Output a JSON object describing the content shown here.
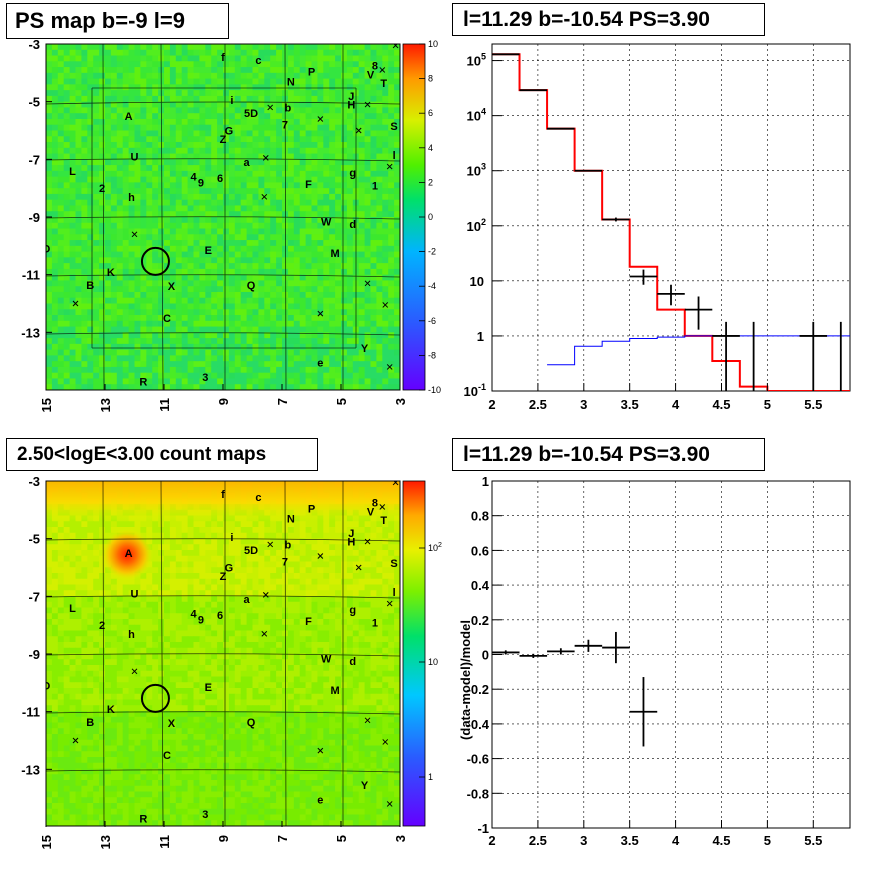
{
  "panels": {
    "ps_map": {
      "title": "PS map b=-9 l=9",
      "y_ticks": [
        "-3",
        "-5",
        "-7",
        "-9",
        "-11",
        "-13"
      ],
      "x_ticks": [
        "15",
        "13",
        "11",
        "9",
        "7",
        "5",
        "3"
      ],
      "colorbar_ticks": [
        "10",
        "8",
        "6",
        "4",
        "2",
        "0",
        "-2",
        "-4",
        "-6",
        "-8",
        "-10"
      ],
      "colorbar_range": [
        -10,
        10
      ]
    },
    "count_map": {
      "title": "2.50<logE<3.00 count maps",
      "y_ticks": [
        "-3",
        "-5",
        "-7",
        "-9",
        "-11",
        "-13"
      ],
      "x_ticks": [
        "15",
        "13",
        "11",
        "9",
        "7",
        "5",
        "3"
      ],
      "colorbar_ticks": [
        "10^2",
        "10",
        "1"
      ],
      "colorbar_scale": "log"
    },
    "spectrum": {
      "title": "l=11.29 b=-10.54 PS=3.90",
      "x_ticks": [
        "2",
        "2.5",
        "3",
        "3.5",
        "4",
        "4.5",
        "5",
        "5.5"
      ],
      "y_ticks": [
        {
          "base": "10",
          "exp": "5",
          "v": 5
        },
        {
          "base": "10",
          "exp": "4",
          "v": 4
        },
        {
          "base": "10",
          "exp": "3",
          "v": 3
        },
        {
          "base": "10",
          "exp": "2",
          "v": 2
        },
        {
          "base": "10",
          "exp": "",
          "v": 1
        },
        {
          "base": "1",
          "exp": "",
          "v": 0
        },
        {
          "base": "10",
          "exp": "-1",
          "v": -1
        }
      ]
    },
    "residual": {
      "title": "l=11.29 b=-10.54 PS=3.90",
      "ylabel": "(data-model)/model",
      "x_ticks": [
        "2",
        "2.5",
        "3",
        "3.5",
        "4",
        "4.5",
        "5",
        "5.5"
      ],
      "y_ticks": [
        "1",
        "0.8",
        "0.6",
        "0.4",
        "0.2",
        "0",
        "-0.2",
        "-0.4",
        "-0.6",
        "-0.8",
        "-1"
      ]
    }
  },
  "map_labels": [
    {
      "t": "f",
      "l": 9.0,
      "b": -3.45
    },
    {
      "t": "c",
      "l": 7.8,
      "b": -3.55
    },
    {
      "t": "N",
      "l": 6.7,
      "b": -4.3
    },
    {
      "t": "P",
      "l": 6.0,
      "b": -3.95
    },
    {
      "t": "V",
      "l": 4.0,
      "b": -4.05
    },
    {
      "t": "8",
      "l": 3.85,
      "b": -3.75
    },
    {
      "t": "T",
      "l": 3.55,
      "b": -4.35
    },
    {
      "t": "J",
      "l": 4.65,
      "b": -4.8
    },
    {
      "t": "H",
      "l": 4.65,
      "b": -5.1
    },
    {
      "t": "S",
      "l": 3.2,
      "b": -5.85
    },
    {
      "t": "l",
      "l": 3.2,
      "b": -6.85
    },
    {
      "t": "i",
      "l": 8.7,
      "b": -4.95
    },
    {
      "t": "b",
      "l": 6.8,
      "b": -5.2
    },
    {
      "t": "5D",
      "l": 8.05,
      "b": -5.4
    },
    {
      "t": "7",
      "l": 6.9,
      "b": -5.8
    },
    {
      "t": "A",
      "l": 12.2,
      "b": -5.5
    },
    {
      "t": "G",
      "l": 8.8,
      "b": -6.0
    },
    {
      "t": "Z",
      "l": 9.0,
      "b": -6.3
    },
    {
      "t": "a",
      "l": 8.2,
      "b": -7.1
    },
    {
      "t": "U",
      "l": 12.0,
      "b": -6.9
    },
    {
      "t": "L",
      "l": 14.1,
      "b": -7.4
    },
    {
      "t": "4",
      "l": 10.0,
      "b": -7.6
    },
    {
      "t": "9",
      "l": 9.75,
      "b": -7.8
    },
    {
      "t": "6",
      "l": 9.1,
      "b": -7.65
    },
    {
      "t": "F",
      "l": 6.1,
      "b": -7.85
    },
    {
      "t": "g",
      "l": 4.6,
      "b": -7.45
    },
    {
      "t": "1",
      "l": 3.85,
      "b": -7.9
    },
    {
      "t": "2",
      "l": 13.1,
      "b": -8.0
    },
    {
      "t": "h",
      "l": 12.1,
      "b": -8.3
    },
    {
      "t": "W",
      "l": 5.5,
      "b": -9.15
    },
    {
      "t": "d",
      "l": 4.6,
      "b": -9.25
    },
    {
      "t": "O",
      "l": 15.0,
      "b": -10.1
    },
    {
      "t": "E",
      "l": 9.5,
      "b": -10.15
    },
    {
      "t": "M",
      "l": 5.2,
      "b": -10.25
    },
    {
      "t": "K",
      "l": 12.8,
      "b": -10.9
    },
    {
      "t": "B",
      "l": 13.5,
      "b": -11.35
    },
    {
      "t": "X",
      "l": 10.75,
      "b": -11.4
    },
    {
      "t": "Q",
      "l": 8.05,
      "b": -11.35
    },
    {
      "t": "C",
      "l": 10.9,
      "b": -12.5
    },
    {
      "t": "Y",
      "l": 4.2,
      "b": -13.55
    },
    {
      "t": "e",
      "l": 5.7,
      "b": -14.05
    },
    {
      "t": "3",
      "l": 9.6,
      "b": -14.55
    },
    {
      "t": "R",
      "l": 11.7,
      "b": -14.7
    }
  ],
  "map_crosses": [
    {
      "l": 3.15,
      "b": -3.05
    },
    {
      "l": 4.1,
      "b": -5.1
    },
    {
      "l": 7.4,
      "b": -5.2
    },
    {
      "l": 5.7,
      "b": -5.6
    },
    {
      "l": 4.4,
      "b": -6.0
    },
    {
      "l": 7.55,
      "b": -6.95
    },
    {
      "l": 12.0,
      "b": -9.6
    },
    {
      "l": 3.6,
      "b": -3.9
    },
    {
      "l": 14.0,
      "b": -12.0
    },
    {
      "l": 4.1,
      "b": -11.3
    },
    {
      "l": 3.5,
      "b": -12.05
    },
    {
      "l": 5.7,
      "b": -12.35
    },
    {
      "l": 3.35,
      "b": -14.2
    },
    {
      "l": 7.6,
      "b": -8.3
    },
    {
      "l": 3.35,
      "b": -7.25
    }
  ],
  "roi_circle": {
    "l": 11.29,
    "b": -10.54
  },
  "bright_source_A": {
    "l": 12.25,
    "b": -5.55
  },
  "chart_data": [
    {
      "type": "heatmap",
      "title": "PS map b=-9 l=9",
      "xlabel": "",
      "ylabel": "",
      "xlim": [
        15,
        3
      ],
      "ylim": [
        -15,
        -3
      ],
      "zlim": [
        -10,
        10
      ],
      "note_values": "background near 1 to 2, mostly uniform green"
    },
    {
      "type": "heatmap",
      "title": "2.50<logE<3.00 count maps",
      "xlabel": "",
      "ylabel": "",
      "xlim": [
        15,
        3
      ],
      "ylim": [
        -15,
        -3
      ],
      "zscale": "log",
      "zlim": [
        0.3,
        500
      ]
    },
    {
      "type": "line",
      "title": "l=11.29 b=-10.54 PS=3.90",
      "xlim": [
        2,
        5.9
      ],
      "ylim": [
        0.1,
        200000
      ],
      "yscale": "log",
      "grid": true,
      "series": [
        {
          "color": "#ff0000",
          "style": "histogram",
          "edges": [
            2.0,
            2.3,
            2.6,
            2.9,
            3.2,
            3.5,
            3.8,
            4.1,
            4.4,
            4.7,
            5.0,
            5.3,
            5.6,
            5.9
          ],
          "values": [
            130000,
            29000,
            5800,
            1000,
            130,
            18,
            3.0,
            1.0,
            0.35,
            0.12,
            0.1,
            0.1,
            0.1
          ]
        },
        {
          "color": "#0000ff",
          "style": "histogram",
          "edges": [
            2.6,
            2.9,
            3.2,
            3.5,
            3.8,
            4.1,
            4.4,
            4.7,
            5.0,
            5.3,
            5.6,
            5.9
          ],
          "values": [
            0.3,
            0.65,
            0.8,
            0.9,
            0.95,
            1.0,
            1.0,
            1.0,
            1.0,
            1.0,
            1.0
          ]
        },
        {
          "color": "#000000",
          "style": "errorbars",
          "points": [
            {
              "x": 2.15,
              "xe": 0.15,
              "y": 130000,
              "ylo": 129000,
              "yhi": 131000
            },
            {
              "x": 2.45,
              "xe": 0.15,
              "y": 29000,
              "ylo": 28800,
              "yhi": 29200
            },
            {
              "x": 2.75,
              "xe": 0.15,
              "y": 5800,
              "ylo": 5700,
              "yhi": 5900
            },
            {
              "x": 3.05,
              "xe": 0.15,
              "y": 1000,
              "ylo": 970,
              "yhi": 1030
            },
            {
              "x": 3.35,
              "xe": 0.15,
              "y": 130,
              "ylo": 120,
              "yhi": 141
            },
            {
              "x": 3.65,
              "xe": 0.15,
              "y": 12,
              "ylo": 8.5,
              "yhi": 16
            },
            {
              "x": 3.95,
              "xe": 0.15,
              "y": 5.8,
              "ylo": 3.6,
              "yhi": 8.5
            },
            {
              "x": 4.25,
              "xe": 0.15,
              "y": 3.0,
              "ylo": 1.3,
              "yhi": 5.2
            },
            {
              "x": 4.55,
              "xe": 0.15,
              "y": 1.0,
              "ylo": 0.1,
              "yhi": 1.8
            },
            {
              "x": 4.85,
              "xe": 0.0,
              "y": 1.0,
              "ylo": 0.1,
              "yhi": 1.8
            },
            {
              "x": 5.5,
              "xe": 0.15,
              "y": 1.0,
              "ylo": 0.1,
              "yhi": 1.8
            },
            {
              "x": 5.8,
              "xe": 0.0,
              "y": 1.0,
              "ylo": 0.1,
              "yhi": 1.8
            }
          ]
        }
      ]
    },
    {
      "type": "scatter",
      "title": "l=11.29 b=-10.54 PS=3.90",
      "ylabel": "(data-model)/model",
      "xlim": [
        2,
        5.9
      ],
      "ylim": [
        -1,
        1
      ],
      "grid": true,
      "points": [
        {
          "x": 2.15,
          "xe": 0.15,
          "y": 0.012,
          "ye": 0.012
        },
        {
          "x": 2.45,
          "xe": 0.15,
          "y": -0.008,
          "ye": 0.012
        },
        {
          "x": 2.75,
          "xe": 0.15,
          "y": 0.018,
          "ye": 0.018
        },
        {
          "x": 3.05,
          "xe": 0.15,
          "y": 0.05,
          "ye": 0.035
        },
        {
          "x": 3.35,
          "xe": 0.15,
          "y": 0.04,
          "ye": 0.09
        },
        {
          "x": 3.65,
          "xe": 0.15,
          "y": -0.33,
          "ye": 0.2
        }
      ]
    }
  ]
}
